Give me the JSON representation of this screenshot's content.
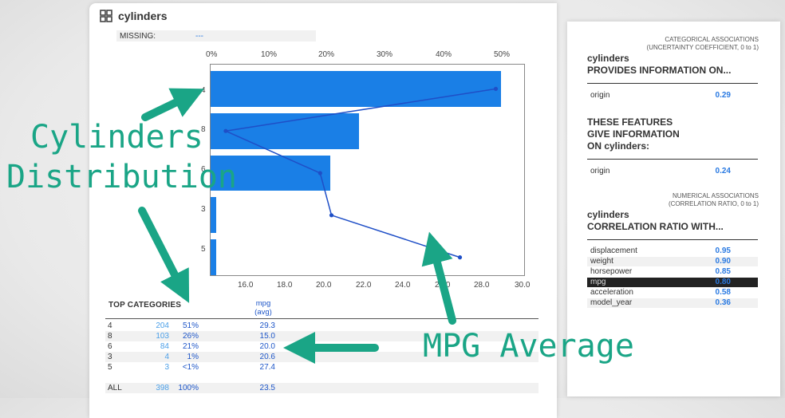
{
  "feature": {
    "title": "cylinders",
    "missing_label": "MISSING:",
    "missing_value": "---"
  },
  "plot": {
    "top_ticks": [
      "0%",
      "10%",
      "20%",
      "30%",
      "40%",
      "50%"
    ],
    "bottom_ticks": [
      "16.0",
      "18.0",
      "20.0",
      "22.0",
      "24.0",
      "26.0",
      "28.0",
      "30.0"
    ],
    "categories": [
      "4",
      "8",
      "6",
      "3",
      "5"
    ]
  },
  "chart_data": {
    "type": "bar",
    "orientation": "horizontal",
    "categories": [
      "4",
      "8",
      "6",
      "3",
      "5"
    ],
    "series": [
      {
        "name": "",
        "unit": "percent",
        "values": [
          51,
          26,
          21,
          1,
          1
        ]
      },
      {
        "name": "mpg (avg)",
        "values": [
          29.3,
          15.0,
          20.0,
          20.6,
          27.4
        ]
      }
    ],
    "x_top_range": [
      0,
      55
    ],
    "x_bottom_range": [
      14.2,
      30.8
    ],
    "grid": false
  },
  "table": {
    "label": "TOP CATEGORIES",
    "mpg_header": "mpg",
    "mpg_sub": "(avg)",
    "rows": [
      {
        "cat": "4",
        "count": "204",
        "pct": "51%",
        "mpg": "29.3"
      },
      {
        "cat": "8",
        "count": "103",
        "pct": "26%",
        "mpg": "15.0"
      },
      {
        "cat": "6",
        "count": "84",
        "pct": "21%",
        "mpg": "20.0"
      },
      {
        "cat": "3",
        "count": "4",
        "pct": "1%",
        "mpg": "20.6"
      },
      {
        "cat": "5",
        "count": "3",
        "pct": "<1%",
        "mpg": "27.4"
      }
    ],
    "all": {
      "cat": "ALL",
      "count": "398",
      "pct": "100%",
      "mpg": "23.5"
    }
  },
  "categorical": {
    "header1": "CATEGORICAL ASSOCIATIONS",
    "header2": "(UNCERTAINTY COEFFICIENT, 0 to 1)",
    "title1": "cylinders",
    "title2": "PROVIDES INFORMATION ON...",
    "provides": [
      {
        "name": "origin",
        "value": "0.29"
      }
    ],
    "given_title1": "THESE FEATURES",
    "given_title2": "GIVE INFORMATION",
    "given_title3": "ON cylinders:",
    "given": [
      {
        "name": "origin",
        "value": "0.24"
      }
    ]
  },
  "numerical": {
    "header1": "NUMERICAL ASSOCIATIONS",
    "header2": "(CORRELATION RATIO, 0 to 1)",
    "title1": "cylinders",
    "title2": "CORRELATION RATIO WITH...",
    "rows": [
      {
        "name": "displacement",
        "value": "0.95"
      },
      {
        "name": "weight",
        "value": "0.90"
      },
      {
        "name": "horsepower",
        "value": "0.85"
      },
      {
        "name": "mpg",
        "value": "0.80"
      },
      {
        "name": "acceleration",
        "value": "0.58"
      },
      {
        "name": "model_year",
        "value": "0.36"
      }
    ]
  },
  "annotations": {
    "distribution_line1": "Cylinders",
    "distribution_line2": "Distribution",
    "mpg_average": "MPG Average",
    "color": "#1aa586"
  },
  "colors": {
    "bar": "#1a7fe6",
    "line": "#1f4fc7",
    "value_blue": "#2a7ae2"
  }
}
